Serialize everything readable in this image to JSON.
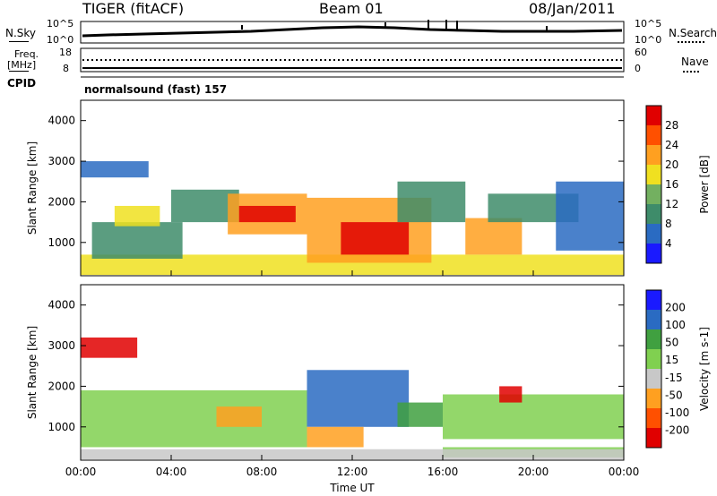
{
  "header": {
    "radar": "TIGER (fitACF)",
    "beam": "Beam 01",
    "date": "08/Jan/2011"
  },
  "panels": {
    "nsky_label": "N.Sky",
    "nsky_ticks": [
      "10^5",
      "10^0"
    ],
    "nsearch_label": "N.Search",
    "nsearch_ticks": [
      "10^5",
      "10^0"
    ],
    "freq_label_1": "Freq.",
    "freq_label_2": "[MHz]",
    "freq_ticks": [
      "18",
      "8"
    ],
    "nave_label": "Nave",
    "nave_ticks": [
      "60",
      "0"
    ],
    "cpid_label": "CPID",
    "cpid_value": "normalsound (fast) 157"
  },
  "chart_data": [
    {
      "type": "heatmap",
      "title": "",
      "xlabel": "Time UT",
      "ylabel": "Slant Range [km]",
      "x_ticks": [
        "00:00",
        "04:00",
        "08:00",
        "12:00",
        "16:00",
        "20:00",
        "00:00"
      ],
      "y_ticks": [
        4000,
        3000,
        2000,
        1000
      ],
      "ylim": [
        180,
        4500
      ],
      "xlim_hours": [
        0,
        24
      ],
      "colorbar": {
        "label": "Power [dB]",
        "ticks": [
          "28",
          "24",
          "20",
          "16",
          "12",
          "8",
          "4"
        ],
        "range": [
          0,
          30
        ]
      },
      "regions": [
        {
          "t": [
            0,
            24
          ],
          "r": [
            200,
            700
          ],
          "value": 18
        },
        {
          "t": [
            0.5,
            4.5
          ],
          "r": [
            600,
            1500
          ],
          "value": 11
        },
        {
          "t": [
            1.5,
            3.5
          ],
          "r": [
            1400,
            1900
          ],
          "value": 15
        },
        {
          "t": [
            0,
            3
          ],
          "r": [
            2600,
            3000
          ],
          "value": 7
        },
        {
          "t": [
            4,
            7
          ],
          "r": [
            1500,
            2300
          ],
          "value": 10
        },
        {
          "t": [
            6.5,
            10
          ],
          "r": [
            1200,
            2200
          ],
          "value": 22
        },
        {
          "t": [
            7,
            9.5
          ],
          "r": [
            1500,
            1900
          ],
          "value": 27
        },
        {
          "t": [
            10,
            15.5
          ],
          "r": [
            500,
            2100
          ],
          "value": 19
        },
        {
          "t": [
            11.5,
            14.5
          ],
          "r": [
            700,
            1500
          ],
          "value": 28
        },
        {
          "t": [
            14,
            17
          ],
          "r": [
            1500,
            2500
          ],
          "value": 9
        },
        {
          "t": [
            17,
            19.5
          ],
          "r": [
            700,
            1600
          ],
          "value": 20
        },
        {
          "t": [
            18,
            22
          ],
          "r": [
            1500,
            2200
          ],
          "value": 11
        },
        {
          "t": [
            21,
            24
          ],
          "r": [
            800,
            2500
          ],
          "value": 6
        }
      ],
      "colors": [
        "#1a1aff",
        "#2a6bc2",
        "#3e8c6a",
        "#73b060",
        "#f0e020",
        "#ffa020",
        "#ff5000",
        "#e00000"
      ]
    },
    {
      "type": "heatmap",
      "title": "",
      "xlabel": "Time UT",
      "ylabel": "Slant Range [km]",
      "x_ticks": [
        "00:00",
        "04:00",
        "08:00",
        "12:00",
        "16:00",
        "20:00",
        "00:00"
      ],
      "y_ticks": [
        4000,
        3000,
        2000,
        1000
      ],
      "ylim": [
        180,
        4500
      ],
      "xlim_hours": [
        0,
        24
      ],
      "colorbar": {
        "label": "Velocity [m s-1]",
        "ticks": [
          "200",
          "100",
          "50",
          "15",
          "-15",
          "-50",
          "-100",
          "-200"
        ],
        "range": [
          -250,
          250
        ]
      },
      "regions": [
        {
          "t": [
            0,
            10
          ],
          "r": [
            500,
            1900
          ],
          "value": 0
        },
        {
          "t": [
            0,
            2.5
          ],
          "r": [
            2700,
            3200
          ],
          "value": -220
        },
        {
          "t": [
            6,
            8
          ],
          "r": [
            1000,
            1500
          ],
          "value": -80
        },
        {
          "t": [
            10,
            14.5
          ],
          "r": [
            1000,
            2400
          ],
          "value": 180
        },
        {
          "t": [
            10,
            12.5
          ],
          "r": [
            500,
            1000
          ],
          "value": -120
        },
        {
          "t": [
            14,
            16
          ],
          "r": [
            1000,
            1600
          ],
          "value": 70
        },
        {
          "t": [
            16,
            24
          ],
          "r": [
            250,
            500
          ],
          "value": 40
        },
        {
          "t": [
            16,
            24
          ],
          "r": [
            700,
            1800
          ],
          "value": 0
        },
        {
          "t": [
            18.5,
            19.5
          ],
          "r": [
            1600,
            2000
          ],
          "value": -200
        },
        {
          "t": [
            0,
            24
          ],
          "r": [
            200,
            450
          ],
          "value": -40
        }
      ],
      "colors": [
        "#e00000",
        "#ff5000",
        "#ffa020",
        "#c8c8c8",
        "#80d050",
        "#40a040",
        "#2a6bc2",
        "#1a1aff"
      ]
    }
  ]
}
